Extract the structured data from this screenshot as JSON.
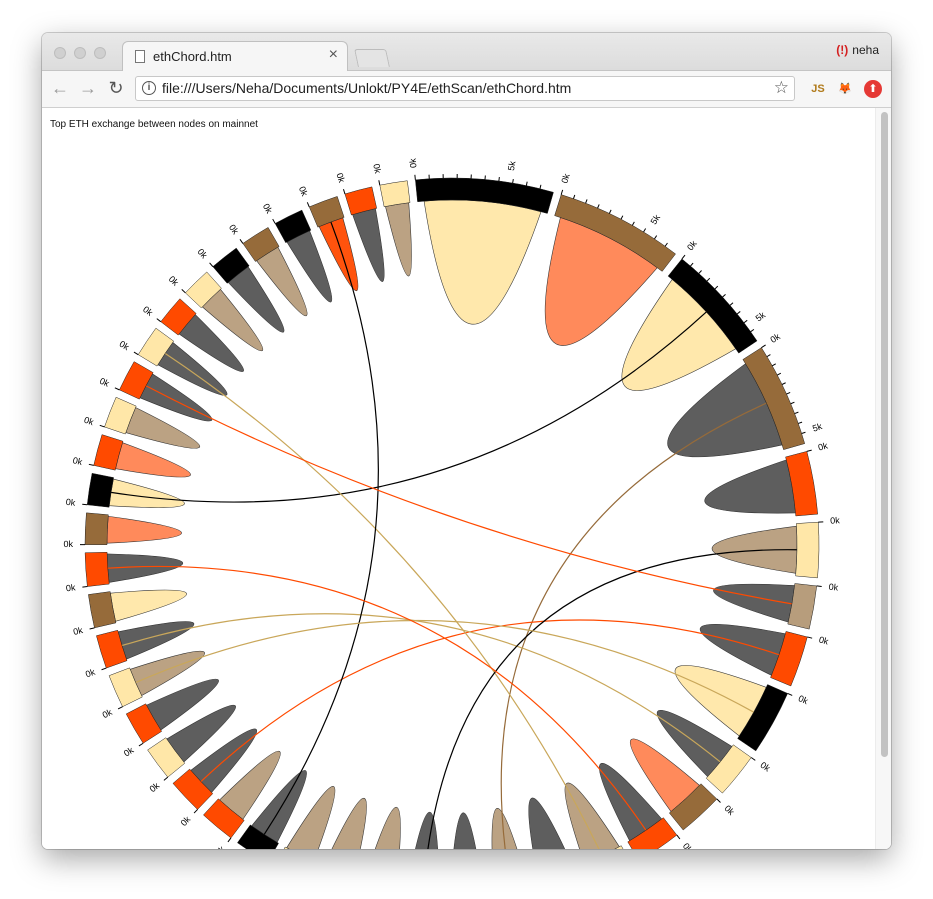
{
  "browser": {
    "tab_title": "ethChord.htm",
    "tab_close": "×",
    "profile_name": "neha",
    "url": "file:///Users/Neha/Documents/Unlokt/PY4E/ethScan/ethChord.htm",
    "back_icon": "←",
    "forward_icon": "→",
    "reload_icon": "↻",
    "info_icon": "i",
    "star_icon": "☆",
    "ext_js": "JS",
    "ext_fox": "🦊",
    "ext_upload": "⬆"
  },
  "page": {
    "title": "Top ETH exchange between nodes on mainnet"
  },
  "chart_data": {
    "type": "chord",
    "title": "Top ETH exchange between nodes on mainnet",
    "tick_labels": [
      "0k",
      "5k"
    ],
    "palette": [
      "#000000",
      "#966b3a",
      "#ffe7a8",
      "#ff4a00",
      "#555555",
      "#b79d7c",
      "#ff8452"
    ],
    "groups": [
      {
        "value": 7.0,
        "color": "#000000",
        "chord": "#ffe7a8"
      },
      {
        "value": 6.5,
        "color": "#966b3a",
        "chord": "#ff8452"
      },
      {
        "value": 5.6,
        "color": "#000000",
        "chord": "#ffe7a8"
      },
      {
        "value": 5.3,
        "color": "#966b3a",
        "chord": "#555555"
      },
      {
        "value": 3.2,
        "color": "#ff4a00",
        "chord": "#555555"
      },
      {
        "value": 2.8,
        "color": "#ffe7a8",
        "chord": "#b79d7c"
      },
      {
        "value": 2.2,
        "color": "#b79d7c",
        "chord": "#555555"
      },
      {
        "value": 2.6,
        "color": "#ff4a00",
        "chord": "#555555"
      },
      {
        "value": 3.3,
        "color": "#000000",
        "chord": "#ffe7a8"
      },
      {
        "value": 2.3,
        "color": "#ffe7a8",
        "chord": "#555555"
      },
      {
        "value": 2.3,
        "color": "#966b3a",
        "chord": "#ff8452"
      },
      {
        "value": 2.3,
        "color": "#ff4a00",
        "chord": "#555555"
      },
      {
        "value": 2.3,
        "color": "#ffe7a8",
        "chord": "#b79d7c"
      },
      {
        "value": 2.2,
        "color": "#ff4a00",
        "chord": "#555555"
      },
      {
        "value": 2.0,
        "color": "#ffe7a8",
        "chord": "#b79d7c"
      },
      {
        "value": 1.9,
        "color": "#ffe7a8",
        "chord": "#555555"
      },
      {
        "value": 1.9,
        "color": "#000000",
        "chord": "#555555"
      },
      {
        "value": 1.9,
        "color": "#966b3a",
        "chord": "#b79d7c"
      },
      {
        "value": 1.9,
        "color": "#ff4a00",
        "chord": "#b79d7c"
      },
      {
        "value": 1.8,
        "color": "#ffe7a8",
        "chord": "#b79d7c"
      },
      {
        "value": 1.8,
        "color": "#000000",
        "chord": "#555555"
      },
      {
        "value": 1.8,
        "color": "#ff4a00",
        "chord": "#b79d7c"
      },
      {
        "value": 1.8,
        "color": "#ff4a00",
        "chord": "#555555"
      },
      {
        "value": 1.7,
        "color": "#ffe7a8",
        "chord": "#555555"
      },
      {
        "value": 1.7,
        "color": "#ff4a00",
        "chord": "#555555"
      },
      {
        "value": 1.7,
        "color": "#ffe7a8",
        "chord": "#b79d7c"
      },
      {
        "value": 1.7,
        "color": "#ff4a00",
        "chord": "#555555"
      },
      {
        "value": 1.7,
        "color": "#966b3a",
        "chord": "#ffe7a8"
      },
      {
        "value": 1.7,
        "color": "#ff4a00",
        "chord": "#555555"
      },
      {
        "value": 1.6,
        "color": "#966b3a",
        "chord": "#ff8452"
      },
      {
        "value": 1.6,
        "color": "#000000",
        "chord": "#ffe7a8"
      },
      {
        "value": 1.6,
        "color": "#ff4a00",
        "chord": "#ff8452"
      },
      {
        "value": 1.6,
        "color": "#ffe7a8",
        "chord": "#b79d7c"
      },
      {
        "value": 1.6,
        "color": "#ff4a00",
        "chord": "#555555"
      },
      {
        "value": 1.6,
        "color": "#ffe7a8",
        "chord": "#555555"
      },
      {
        "value": 1.5,
        "color": "#ff4a00",
        "chord": "#555555"
      },
      {
        "value": 1.5,
        "color": "#ffe7a8",
        "chord": "#b79d7c"
      },
      {
        "value": 1.5,
        "color": "#000000",
        "chord": "#555555"
      },
      {
        "value": 1.5,
        "color": "#966b3a",
        "chord": "#b79d7c"
      },
      {
        "value": 1.5,
        "color": "#000000",
        "chord": "#555555"
      },
      {
        "value": 1.5,
        "color": "#966b3a",
        "chord": "#ff4a00"
      },
      {
        "value": 1.4,
        "color": "#ff4a00",
        "chord": "#555555"
      },
      {
        "value": 1.4,
        "color": "#ffe7a8",
        "chord": "#b79d7c"
      }
    ]
  }
}
